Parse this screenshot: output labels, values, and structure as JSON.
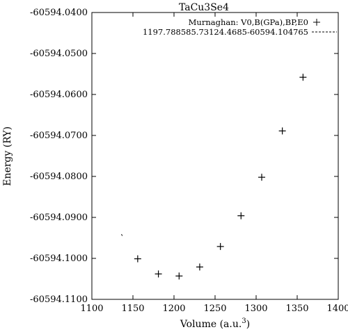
{
  "chart_data": {
    "type": "scatter",
    "title": "TaCu3Se4",
    "xlabel": "Volume (a.u.",
    "xlabel_sup": "3",
    "xlabel_close": ")",
    "ylabel": "Energy (RY)",
    "xlim": [
      1100,
      1400
    ],
    "ylim": [
      -60594.11,
      -60594.04
    ],
    "xticks": [
      "1100",
      "1150",
      "1200",
      "1250",
      "1300",
      "1350",
      "1400"
    ],
    "xtick_values": [
      1100,
      1150,
      1200,
      1250,
      1300,
      1350,
      1400
    ],
    "yticks": [
      "-60594.0400",
      "-60594.0500",
      "-60594.0600",
      "-60594.0700",
      "-60594.0800",
      "-60594.0900",
      "-60594.1000",
      "-60594.1100"
    ],
    "ytick_values": [
      -60594.04,
      -60594.05,
      -60594.06,
      -60594.07,
      -60594.08,
      -60594.09,
      -60594.1,
      -60594.11
    ],
    "grid": false,
    "legend_position": "top-right",
    "series": [
      {
        "name": "Murnaghan: V0,B(GPa),BP,E0",
        "marker": "+",
        "x": [
          1155.8,
          1181.0,
          1206.2,
          1231.3,
          1256.5,
          1281.6,
          1306.8,
          1331.9,
          1357.1
        ],
        "y": [
          -60594.1001,
          -60594.1038,
          -60594.1043,
          -60594.1021,
          -60594.0971,
          -60594.0896,
          -60594.0802,
          -60594.0689,
          -60594.0558
        ]
      },
      {
        "name": "1197.788585.73124.4685-60594.104765",
        "style": "dashed",
        "x": [
          1136.0,
          1137.0
        ],
        "y": [
          -60594.0941,
          -60594.0945
        ]
      }
    ]
  }
}
